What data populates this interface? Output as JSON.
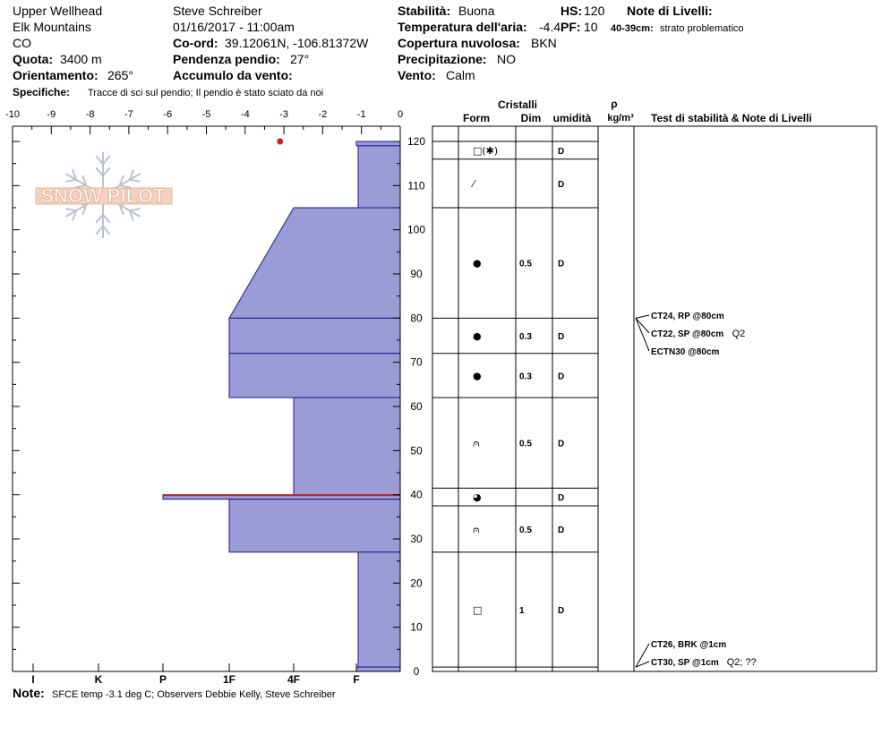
{
  "header": {
    "location": "Upper Wellhead",
    "range": "Elk Mountains",
    "state": "CO",
    "elevation_label": "Quota:",
    "elevation_value": "3400 m",
    "aspect_label": "Orientamento:",
    "aspect_value": "265°",
    "spec_label": "Specifiche:",
    "spec_value": "Tracce di sci sul pendio;  Il pendio è stato sciato da noi",
    "observer": "Steve Schreiber",
    "datetime": "01/16/2017 - 11:00am",
    "coord_label": "Co-ord:",
    "coord_value": "39.12061N, -106.81372W",
    "slope_label": "Pendenza pendio:",
    "slope_value": "27°",
    "wind_load_label": "Accumulo da vento:",
    "stability_label": "Stabilità:",
    "stability_value": "Buona",
    "air_temp_label": "Temperatura dell'aria:",
    "air_temp_value": "-4.4",
    "sky_label": "Copertura nuvolosa:",
    "sky_value": "BKN",
    "precip_label": "Precipitazione:",
    "precip_value": "NO",
    "wind_label": "Vento:",
    "wind_value": "Calm",
    "hs_label": "HS:",
    "hs_value": "120",
    "pf_label": "PF:",
    "pf_value": "10",
    "layer_notes_label": "Note di Livelli:",
    "layer_note_depth": "40-39cm:",
    "layer_note_text": "strato problematico"
  },
  "footer": {
    "note_label": "Note:",
    "note_value": "SFCE temp -3.1 deg C; Observers Debbie Kelly, Steve Schreiber"
  },
  "logo_text": "SNOW PILOT",
  "colors": {
    "hardness_fill": "#9b9bd6",
    "hardness_stroke": "#1a1a9a",
    "critical_layer": "#cc2222",
    "temp_point": "#cc2222"
  },
  "chart_data": {
    "type": "snow-profile",
    "temp_axis": {
      "ticks": [
        "-10",
        "-9",
        "-8",
        "-7",
        "-6",
        "-5",
        "-4",
        "-3",
        "-2",
        "-1",
        "0"
      ],
      "range": [
        -10,
        0
      ]
    },
    "height_axis": {
      "ticks": [
        "0",
        "10",
        "20",
        "30",
        "40",
        "50",
        "60",
        "70",
        "80",
        "90",
        "100",
        "110",
        "120"
      ],
      "range": [
        0,
        120
      ]
    },
    "hardness_axis": {
      "ticks": [
        "I",
        "K",
        "P",
        "1F",
        "4F",
        "F"
      ]
    },
    "temperature_points": [
      {
        "height_cm": 120,
        "temp_c": -3.1
      }
    ],
    "hardness_layers": [
      {
        "top": 120,
        "bottom": 119,
        "hardness_top": "F",
        "hardness_bottom": "F"
      },
      {
        "top": 119,
        "bottom": 105,
        "hardness_top": "F+",
        "hardness_bottom": "F+"
      },
      {
        "top": 105,
        "bottom": 80,
        "hardness_top": "4F+",
        "hardness_bottom": "1F"
      },
      {
        "top": 80,
        "bottom": 72,
        "hardness_top": "1F",
        "hardness_bottom": "1F"
      },
      {
        "top": 72,
        "bottom": 62,
        "hardness_top": "1F",
        "hardness_bottom": "1F"
      },
      {
        "top": 62,
        "bottom": 40,
        "hardness_top": "4F",
        "hardness_bottom": "4F"
      },
      {
        "top": 40,
        "bottom": 39,
        "hardness_top": "P",
        "hardness_bottom": "P",
        "critical": true
      },
      {
        "top": 39,
        "bottom": 27,
        "hardness_top": "1F",
        "hardness_bottom": "1F"
      },
      {
        "top": 27,
        "bottom": 1,
        "hardness_top": "F+",
        "hardness_bottom": "F+"
      },
      {
        "top": 1,
        "bottom": 0,
        "hardness_top": "F",
        "hardness_bottom": "F"
      }
    ],
    "columns": {
      "crystals": "Cristalli",
      "form": "Form",
      "size": "Dim",
      "moisture": "umidità",
      "density_symbol": "ρ",
      "density_unit": "kg/m³",
      "tests": "Test di stabilità & Note di Livelli"
    },
    "layers": [
      {
        "top": 120,
        "bottom": 116,
        "form": "□(✱)",
        "size": "",
        "moisture": "D"
      },
      {
        "top": 116,
        "bottom": 105,
        "form": "⁄",
        "size": "",
        "moisture": "D"
      },
      {
        "top": 105,
        "bottom": 80,
        "form": "●",
        "size": "0.5",
        "moisture": "D"
      },
      {
        "top": 80,
        "bottom": 72,
        "form": "●",
        "size": "0.3",
        "moisture": "D"
      },
      {
        "top": 72,
        "bottom": 62,
        "form": "●",
        "size": "0.3",
        "moisture": "D"
      },
      {
        "top": 62,
        "bottom": 41.5,
        "form": "⩀",
        "size": "0.5",
        "moisture": "D"
      },
      {
        "top": 41.5,
        "bottom": 37.5,
        "form": "◕",
        "size": "",
        "moisture": "D"
      },
      {
        "top": 37.5,
        "bottom": 27,
        "form": "⩀",
        "size": "0.5",
        "moisture": "D"
      },
      {
        "top": 27,
        "bottom": 1,
        "form": "□",
        "size": "1",
        "moisture": "D"
      },
      {
        "top": 1,
        "bottom": 0,
        "form": "",
        "size": "",
        "moisture": ""
      }
    ],
    "tests": [
      {
        "height_cm": 80,
        "label": "CT24, RP @80cm",
        "extra": ""
      },
      {
        "height_cm": 80,
        "label": "CT22, SP @80cm",
        "extra": "Q2"
      },
      {
        "height_cm": 80,
        "label": "ECTN30 @80cm",
        "extra": ""
      },
      {
        "height_cm": 1,
        "label": "CT26, BRK @1cm",
        "extra": ""
      },
      {
        "height_cm": 1,
        "label": "CT30, SP @1cm",
        "extra": "Q2; ??"
      }
    ]
  }
}
